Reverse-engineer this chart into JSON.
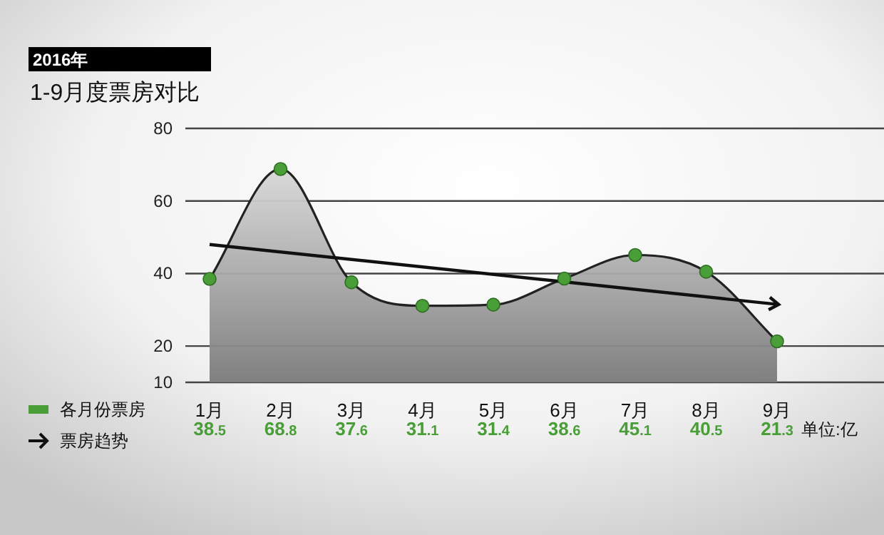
{
  "chart_data": {
    "type": "area",
    "subtitle": "2016年",
    "title": "1-9月度票房对比",
    "categories": [
      "1月",
      "2月",
      "3月",
      "4月",
      "5月",
      "6月",
      "7月",
      "8月",
      "9月"
    ],
    "series": [
      {
        "name": "各月份票房",
        "color": "#4a9e38",
        "marker": "circle",
        "values": [
          38.5,
          68.8,
          37.6,
          31.1,
          31.4,
          38.6,
          45.1,
          40.5,
          21.3
        ],
        "value_labels": [
          "38.5",
          "68.8",
          "37.6",
          "31.1",
          "31.4",
          "38.6",
          "45.1",
          "40.5",
          "21.3"
        ]
      },
      {
        "name": "票房趋势",
        "type": "line",
        "color": "#111111",
        "x": [
          "1月",
          "9月"
        ],
        "values": [
          48,
          31.5
        ]
      }
    ],
    "ylim": [
      10,
      80
    ],
    "yticks": [
      10,
      20,
      40,
      60,
      80
    ],
    "grid": "y",
    "legend": "bottom left",
    "annotations": [
      "单位:亿"
    ]
  }
}
